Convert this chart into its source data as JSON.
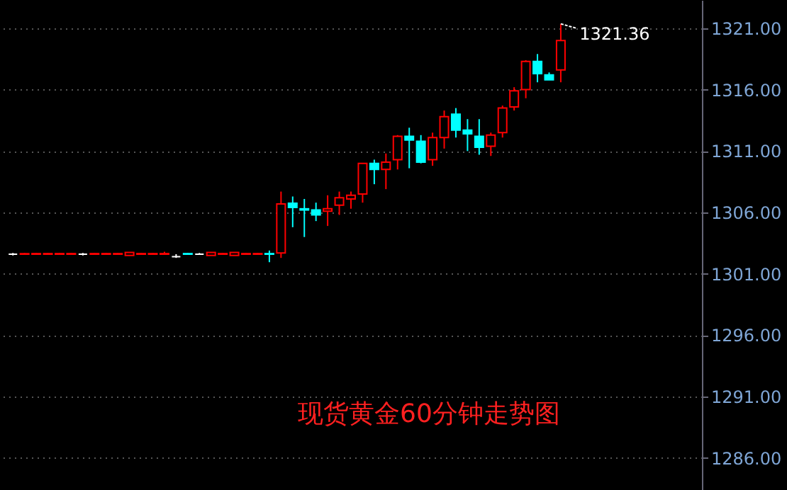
{
  "chart_data": {
    "type": "candlestick",
    "title": "现货黄金60分钟走势图",
    "categories": [
      null,
      null,
      null,
      null,
      null,
      null,
      null,
      null,
      null,
      null,
      null,
      null,
      null,
      null,
      null,
      null,
      null,
      null,
      null,
      null,
      null,
      null,
      null,
      null,
      null,
      null,
      null,
      null,
      null,
      null,
      null,
      null,
      null,
      null,
      null,
      null,
      null,
      null,
      null,
      null,
      null,
      null,
      null,
      null,
      null,
      null,
      null,
      null,
      null,
      null,
      null,
      null,
      null,
      null,
      null,
      null,
      null,
      null,
      null
    ],
    "ohlc": [
      [
        1302.6,
        1302.7,
        1302.5,
        1302.6
      ],
      [
        1302.6,
        1302.7,
        1302.55,
        1302.65
      ],
      [
        1302.6,
        1302.7,
        1302.55,
        1302.65
      ],
      [
        1302.6,
        1302.7,
        1302.55,
        1302.65
      ],
      [
        1302.6,
        1302.7,
        1302.55,
        1302.65
      ],
      [
        1302.6,
        1302.7,
        1302.55,
        1302.65
      ],
      [
        1302.6,
        1302.7,
        1302.5,
        1302.6
      ],
      [
        1302.6,
        1302.7,
        1302.55,
        1302.65
      ],
      [
        1302.6,
        1302.7,
        1302.55,
        1302.65
      ],
      [
        1302.6,
        1302.7,
        1302.55,
        1302.65
      ],
      [
        1302.5,
        1302.75,
        1302.5,
        1302.75
      ],
      [
        1302.6,
        1302.7,
        1302.55,
        1302.65
      ],
      [
        1302.6,
        1302.7,
        1302.55,
        1302.65
      ],
      [
        1302.6,
        1302.8,
        1302.55,
        1302.65
      ],
      [
        1302.4,
        1302.6,
        1302.3,
        1302.4
      ],
      [
        1302.65,
        1302.7,
        1302.55,
        1302.6
      ],
      [
        1302.6,
        1302.7,
        1302.55,
        1302.6
      ],
      [
        1302.5,
        1302.75,
        1302.5,
        1302.75
      ],
      [
        1302.6,
        1302.7,
        1302.55,
        1302.65
      ],
      [
        1302.5,
        1302.75,
        1302.5,
        1302.75
      ],
      [
        1302.6,
        1302.7,
        1302.55,
        1302.65
      ],
      [
        1302.6,
        1302.7,
        1302.55,
        1302.65
      ],
      [
        1302.65,
        1302.9,
        1301.95,
        1302.6
      ],
      [
        1302.7,
        1307.7,
        1302.3,
        1306.7
      ],
      [
        1306.75,
        1307.3,
        1304.8,
        1306.4
      ],
      [
        1306.3,
        1307.1,
        1304.0,
        1306.2
      ],
      [
        1306.2,
        1306.8,
        1305.3,
        1305.8
      ],
      [
        1306.1,
        1307.4,
        1304.9,
        1306.3
      ],
      [
        1306.6,
        1307.7,
        1305.8,
        1307.2
      ],
      [
        1307.1,
        1307.7,
        1306.3,
        1307.4
      ],
      [
        1307.5,
        1310.0,
        1306.8,
        1310.0
      ],
      [
        1310.0,
        1310.3,
        1308.3,
        1309.5
      ],
      [
        1309.5,
        1310.8,
        1307.9,
        1310.1
      ],
      [
        1310.3,
        1312.3,
        1309.5,
        1312.2
      ],
      [
        1312.2,
        1312.9,
        1309.6,
        1311.9
      ],
      [
        1311.8,
        1312.3,
        1310.0,
        1310.1
      ],
      [
        1310.3,
        1312.5,
        1309.8,
        1312.1
      ],
      [
        1312.1,
        1314.3,
        1311.2,
        1313.8
      ],
      [
        1314.0,
        1314.5,
        1312.1,
        1312.7
      ],
      [
        1312.7,
        1313.6,
        1311.0,
        1312.4
      ],
      [
        1312.2,
        1313.6,
        1310.7,
        1311.3
      ],
      [
        1311.4,
        1312.5,
        1310.6,
        1312.3
      ],
      [
        1312.5,
        1314.7,
        1312.1,
        1314.5
      ],
      [
        1314.6,
        1316.2,
        1314.3,
        1315.9
      ],
      [
        1316.0,
        1318.4,
        1315.3,
        1318.3
      ],
      [
        1318.3,
        1318.9,
        1316.6,
        1317.3
      ],
      [
        1317.2,
        1317.4,
        1316.8,
        1316.8
      ],
      [
        1317.6,
        1321.36,
        1316.6,
        1320.0
      ],
      null,
      null,
      null,
      null,
      null,
      null,
      null,
      null,
      null,
      null,
      null
    ],
    "colors": [
      "#ffffff",
      "#ff0000",
      "#ff0000",
      "#ff0000",
      "#ff0000",
      "#ff0000",
      "#ffffff",
      "#ff0000",
      "#ff0000",
      "#ff0000",
      "#ff0000",
      "#ff0000",
      "#ff0000",
      "#ff0000",
      "#ffffff",
      "#00ffff",
      "#ffffff",
      "#ff0000",
      "#ff0000",
      "#ff0000",
      "#ff0000",
      "#ff0000",
      "#00ffff",
      "#ff0000",
      "#00ffff",
      "#00ffff",
      "#00ffff",
      "#ff0000",
      "#ff0000",
      "#ff0000",
      "#ff0000",
      "#00ffff",
      "#ff0000",
      "#ff0000",
      "#00ffff",
      "#00ffff",
      "#ff0000",
      "#ff0000",
      "#00ffff",
      "#00ffff",
      "#00ffff",
      "#ff0000",
      "#ff0000",
      "#ff0000",
      "#ff0000",
      "#00ffff",
      "#00ffff",
      "#ff0000",
      null,
      null,
      null,
      null,
      null,
      null,
      null,
      null,
      null,
      null,
      null
    ],
    "ylim": [
      1283.4,
      1323.3
    ],
    "yticks": [
      {
        "value": 1286,
        "label": "1286.00"
      },
      {
        "value": 1291,
        "label": "1291.00"
      },
      {
        "value": 1296,
        "label": "1296.00"
      },
      {
        "value": 1301,
        "label": "1301.00"
      },
      {
        "value": 1306,
        "label": "1306.00"
      },
      {
        "value": 1311,
        "label": "1311.00"
      },
      {
        "value": 1316,
        "label": "1316.00"
      },
      {
        "value": 1321,
        "label": "1321.00"
      }
    ],
    "grid": "y",
    "annotations": [
      "1321.36"
    ]
  }
}
